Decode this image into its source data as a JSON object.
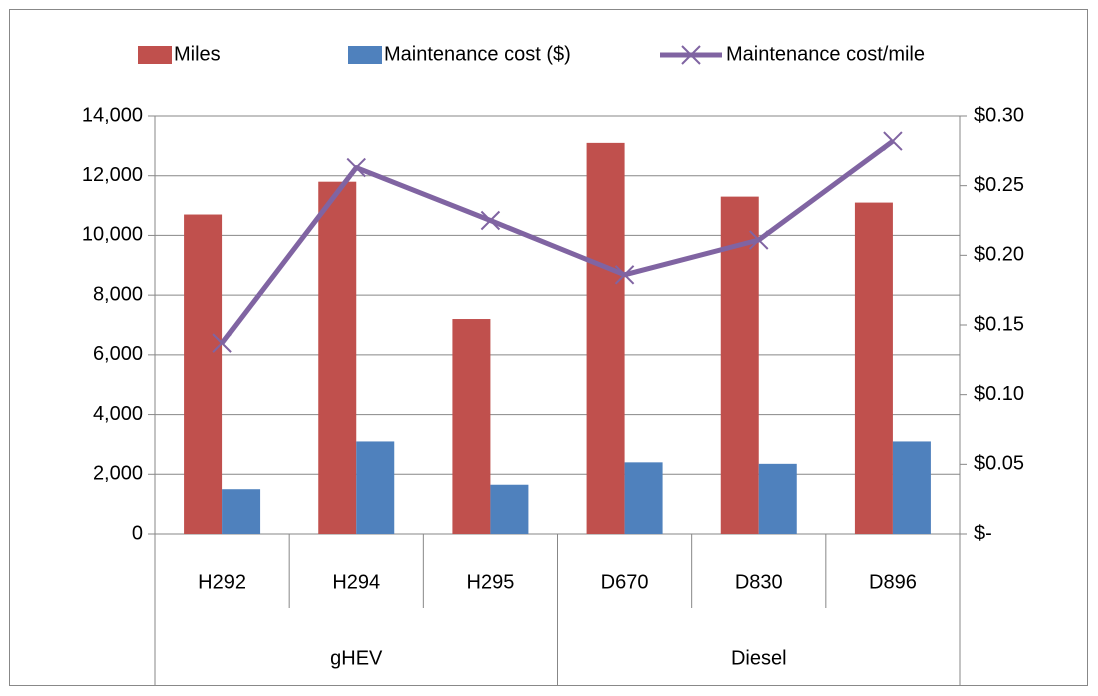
{
  "chart_data": {
    "type": "bar-line",
    "categories": [
      "H292",
      "H294",
      "H295",
      "D670",
      "D830",
      "D896"
    ],
    "groups": [
      {
        "name": "gHEV",
        "span": 3
      },
      {
        "name": "Diesel",
        "span": 3
      }
    ],
    "series": [
      {
        "name": "Miles",
        "color": "#c0504d",
        "type": "bar",
        "values": [
          10700,
          11800,
          7200,
          13100,
          11300,
          11100
        ]
      },
      {
        "name": "Maintenance cost ($)",
        "color": "#4f81bd",
        "type": "bar",
        "values": [
          1500,
          3100,
          1650,
          2400,
          2350,
          3100
        ]
      },
      {
        "name": "Maintenance cost/mile",
        "color": "#8064a2",
        "type": "line",
        "axis": "y2",
        "marker": "x",
        "values": [
          0.137,
          0.263,
          0.225,
          0.186,
          0.211,
          0.282
        ]
      }
    ],
    "ylim": [
      0,
      14000
    ],
    "yticks": [
      0,
      {
        "value": 2000,
        "label": "2,000"
      },
      {
        "value": 4000,
        "label": "4,000"
      },
      {
        "value": 6000,
        "label": "6,000"
      },
      {
        "value": 8000,
        "label": "8,000"
      },
      {
        "value": 10000,
        "label": "10,000"
      },
      {
        "value": 12000,
        "label": "12,000"
      },
      {
        "value": 14000,
        "label": "14,000"
      }
    ],
    "y2lim": [
      0,
      0.3
    ],
    "y2ticks": [
      {
        "value": 0,
        "label": "$-"
      },
      {
        "value": 0.05,
        "label": "$0.05"
      },
      {
        "value": 0.1,
        "label": "$0.10"
      },
      {
        "value": 0.15,
        "label": "$0.15"
      },
      {
        "value": 0.2,
        "label": "$0.20"
      },
      {
        "value": 0.25,
        "label": "$0.25"
      },
      {
        "value": 0.3,
        "label": "$0.30"
      }
    ],
    "grid": true,
    "legend": "top"
  }
}
